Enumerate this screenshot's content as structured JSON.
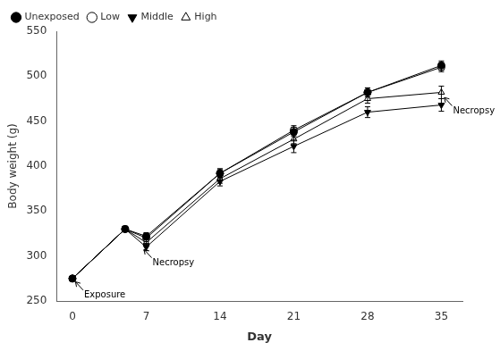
{
  "chart_data": {
    "type": "line",
    "x": [
      0,
      5,
      7,
      14,
      21,
      28,
      35
    ],
    "series": [
      {
        "name": "Unexposed",
        "color": "#000000",
        "marker": "circle",
        "values": [
          275,
          330,
          322,
          392,
          438,
          482,
          512
        ],
        "errors": [
          2,
          3,
          4,
          5,
          5,
          5,
          5
        ]
      },
      {
        "name": "Low",
        "color": "#000000",
        "marker": "circle_open",
        "values": [
          275,
          330,
          320,
          392,
          440,
          482,
          510
        ],
        "errors": [
          2,
          3,
          4,
          5,
          5,
          5,
          5
        ]
      },
      {
        "name": "Middle",
        "color": "#000000",
        "marker": "triangle_down",
        "values": [
          275,
          330,
          310,
          383,
          422,
          460,
          468
        ],
        "errors": [
          2,
          3,
          4,
          5,
          7,
          6,
          7
        ]
      },
      {
        "name": "High",
        "color": "#000000",
        "marker": "triangle_up_open",
        "values": [
          275,
          330,
          315,
          386,
          430,
          475,
          482
        ],
        "errors": [
          2,
          3,
          4,
          5,
          5,
          5,
          7
        ]
      }
    ],
    "xlabel": "Day",
    "ylabel": "Body weight (g)",
    "xlim": [
      -1.5,
      37
    ],
    "xticks": [
      0,
      7,
      14,
      21,
      28,
      35
    ],
    "ylim": [
      250,
      550
    ],
    "yticks": [
      250,
      300,
      350,
      400,
      450,
      500,
      550
    ],
    "grid": false,
    "legend": "upper left",
    "annotations": [
      {
        "text": "Exposure",
        "x": 0,
        "y": 275
      },
      {
        "text": "Necropsy",
        "x": 6.5,
        "y": 311
      },
      {
        "text": "Necropsy",
        "x": 35,
        "y": 480
      }
    ]
  }
}
